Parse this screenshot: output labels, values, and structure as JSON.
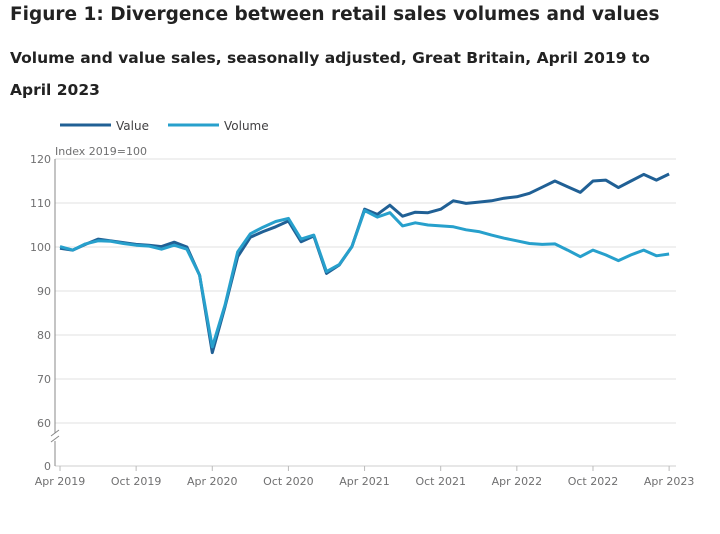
{
  "title": "Figure 1: Divergence between retail sales volumes and values",
  "subtitle": "Volume and value sales, seasonally adjusted, Great Britain, April 2019 to April 2023",
  "chart_data": {
    "type": "line",
    "title": "Figure 1: Divergence between retail sales volumes and values",
    "subtitle": "Volume and value sales, seasonally adjusted, Great Britain, April 2019 to April 2023",
    "ylabel": "Index 2019=100",
    "xlabel": "",
    "x_start": "Apr 2019",
    "x_end": "Apr 2023",
    "x_frequency": "monthly",
    "x_tick_labels": [
      "Apr 2019",
      "Oct 2019",
      "Apr 2020",
      "Oct 2020",
      "Apr 2021",
      "Oct 2021",
      "Apr 2022",
      "Oct 2022",
      "Apr 2023"
    ],
    "y_ticks": [
      0,
      60,
      70,
      80,
      90,
      100,
      110,
      120
    ],
    "y_axis_break": "between 0 and 60",
    "ylim": [
      60,
      120
    ],
    "grid": "horizontal",
    "legend_position": "top-left",
    "series": [
      {
        "name": "Value",
        "color": "#206095",
        "values": [
          99.7,
          99.3,
          100.6,
          101.8,
          101.4,
          101.0,
          100.6,
          100.4,
          100.1,
          101.1,
          100.0,
          93.6,
          76.0,
          86.4,
          97.8,
          102.2,
          103.5,
          104.6,
          105.9,
          101.2,
          102.5,
          94.0,
          95.9,
          100.1,
          108.6,
          107.4,
          109.5,
          107.0,
          107.9,
          107.8,
          108.6,
          110.5,
          109.9,
          110.2,
          110.5,
          111.1,
          111.4,
          112.2,
          113.6,
          115.0,
          113.7,
          112.4,
          115.0,
          115.2,
          113.5,
          115.0,
          116.5,
          115.2,
          116.6
        ]
      },
      {
        "name": "Volume",
        "color": "#27a0cc",
        "values": [
          100.1,
          99.3,
          100.7,
          101.4,
          101.3,
          100.8,
          100.4,
          100.2,
          99.5,
          100.4,
          99.5,
          93.6,
          77.3,
          86.8,
          98.9,
          103.0,
          104.5,
          105.8,
          106.5,
          101.8,
          102.7,
          94.4,
          96.0,
          100.1,
          108.3,
          106.8,
          107.8,
          104.8,
          105.5,
          105.0,
          104.8,
          104.6,
          103.9,
          103.5,
          102.7,
          102.0,
          101.4,
          100.8,
          100.6,
          100.7,
          99.3,
          97.8,
          99.3,
          98.2,
          96.9,
          98.2,
          99.3,
          98.0,
          98.4
        ]
      }
    ]
  }
}
